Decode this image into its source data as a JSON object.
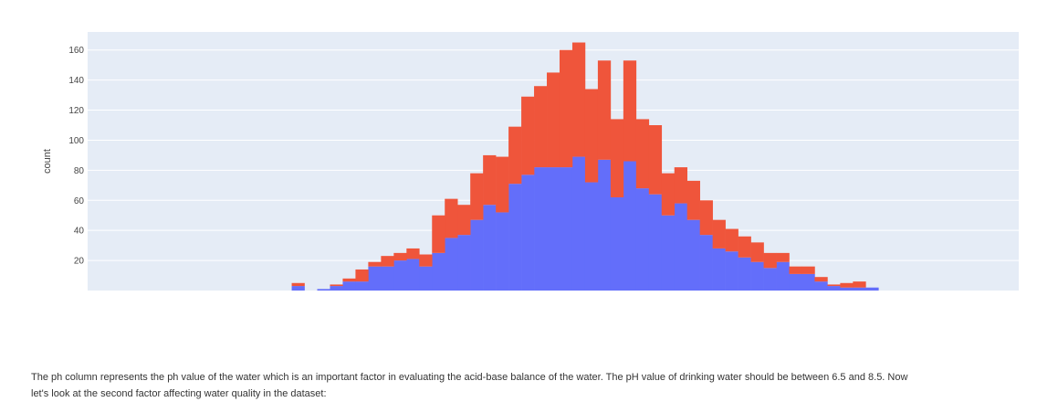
{
  "chart_data": {
    "type": "bar",
    "barmode": "stack",
    "ylabel": "count",
    "xlabel": "",
    "ylim": [
      0,
      172
    ],
    "yticks": [
      20,
      40,
      60,
      80,
      100,
      120,
      140,
      160
    ],
    "xlim": [
      0,
      73
    ],
    "grid": true,
    "background": "#e5ecf6",
    "series": [
      {
        "color": "#636efa",
        "start_bin": 16,
        "values": [
          3,
          0,
          1,
          3,
          6,
          6,
          16,
          16,
          20,
          21,
          16,
          25,
          35,
          37,
          47,
          57,
          52,
          71,
          77,
          82,
          82,
          82,
          89,
          72,
          87,
          62,
          86,
          68,
          64,
          50,
          58,
          47,
          37,
          28,
          26,
          22,
          19,
          15,
          19,
          11,
          11,
          6,
          3,
          2,
          2,
          2
        ]
      },
      {
        "color": "#ef553b",
        "start_bin": 16,
        "values": [
          2,
          0,
          0,
          1,
          2,
          8,
          3,
          7,
          5,
          7,
          8,
          25,
          26,
          20,
          31,
          33,
          37,
          38,
          52,
          54,
          63,
          78,
          76,
          62,
          66,
          52,
          67,
          46,
          46,
          28,
          24,
          26,
          23,
          19,
          15,
          14,
          13,
          10,
          6,
          5,
          5,
          3,
          1,
          3,
          4,
          0
        ]
      }
    ]
  },
  "caption": {
    "line1": "The ph column represents the ph value of the water which is an important factor in evaluating the acid-base balance of the water. The pH value of drinking water should be between 6.5 and 8.5. Now",
    "line2": "let's look at the second factor affecting water quality in the dataset:"
  }
}
